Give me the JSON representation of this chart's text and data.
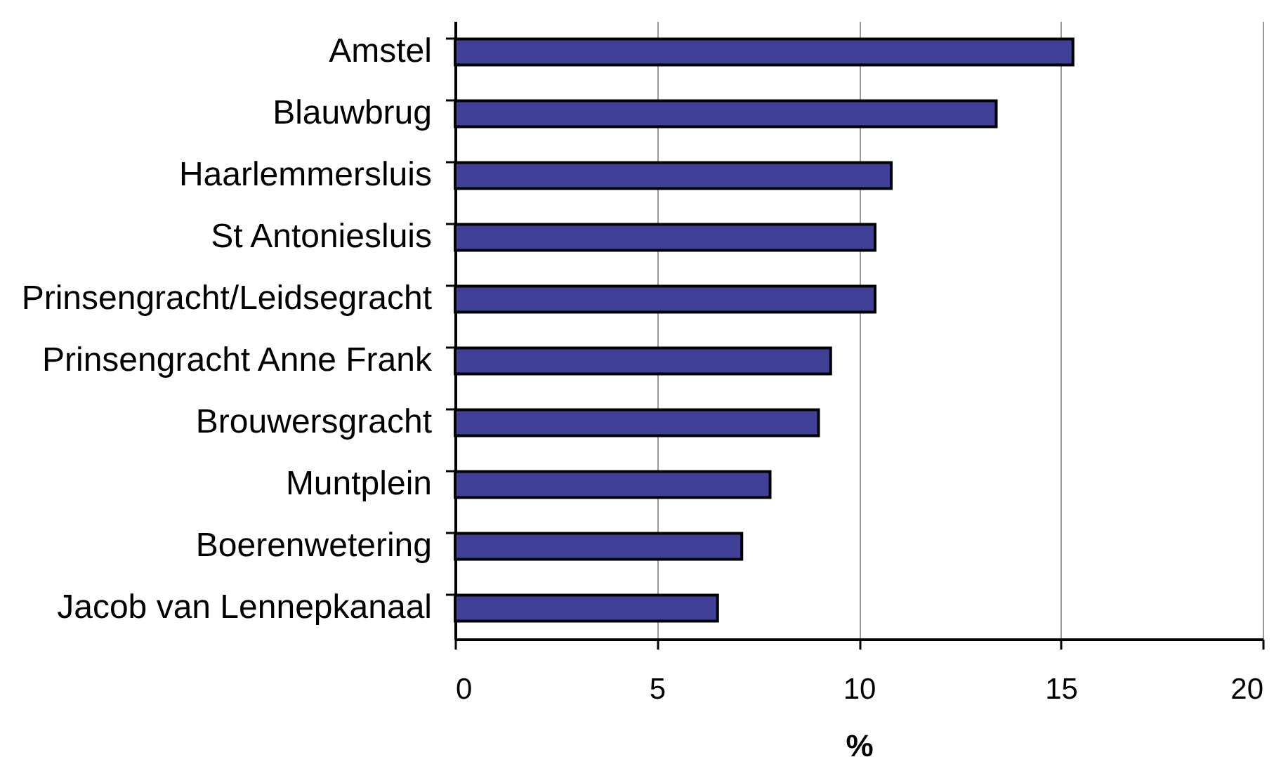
{
  "chart_data": {
    "type": "bar",
    "orientation": "horizontal",
    "categories": [
      "Amstel",
      "Blauwbrug",
      "Haarlemmersluis",
      "St Antoniesluis",
      "Prinsengracht/Leidsegracht",
      "Prinsengracht Anne Frank",
      "Brouwersgracht",
      "Muntplein",
      "Boerenwetering",
      "Jacob van Lennepkanaal"
    ],
    "values": [
      15.3,
      13.4,
      10.8,
      10.4,
      10.4,
      9.3,
      9.0,
      7.8,
      7.1,
      6.5
    ],
    "color": "#404096",
    "xlabel": "%",
    "xlim": [
      0,
      20
    ],
    "xticks": [
      0,
      5,
      10,
      15,
      20
    ],
    "grid": "x"
  }
}
